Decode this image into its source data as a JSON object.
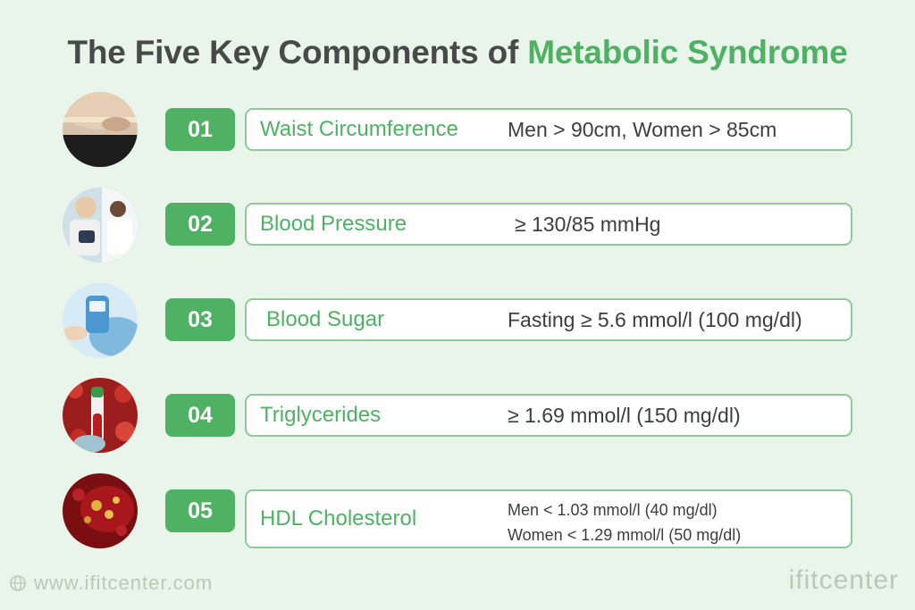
{
  "title": {
    "prefix": "The Five Key Components of ",
    "accent": "Metabolic Syndrome"
  },
  "components": [
    {
      "number": "01",
      "name": "Waist Circumference",
      "value": "Men > 90cm, Women > 85cm",
      "photo": "waist-measure-photo"
    },
    {
      "number": "02",
      "name": "Blood Pressure",
      "value": "≥ 130/85 mmHg",
      "photo": "blood-pressure-photo"
    },
    {
      "number": "03",
      "name": "Blood Sugar",
      "value": "Fasting ≥ 5.6 mmol/l (100 mg/dl)",
      "photo": "glucose-meter-photo"
    },
    {
      "number": "04",
      "name": "Triglycerides",
      "value": "≥ 1.69 mmol/l (150 mg/dl)",
      "photo": "blood-sample-photo"
    },
    {
      "number": "05",
      "name": "HDL Cholesterol",
      "value_lines": [
        "Men < 1.03 mmol/l (40 mg/dl)",
        "Women < 1.29 mmol/l (50 mg/dl)"
      ],
      "photo": "cholesterol-vessel-photo"
    }
  ],
  "footer": {
    "website": "www.ifitcenter.com",
    "brand": "ifitcenter"
  },
  "colors": {
    "accent": "#4fb164",
    "background": "#e9f5ea",
    "text": "#474a48"
  }
}
